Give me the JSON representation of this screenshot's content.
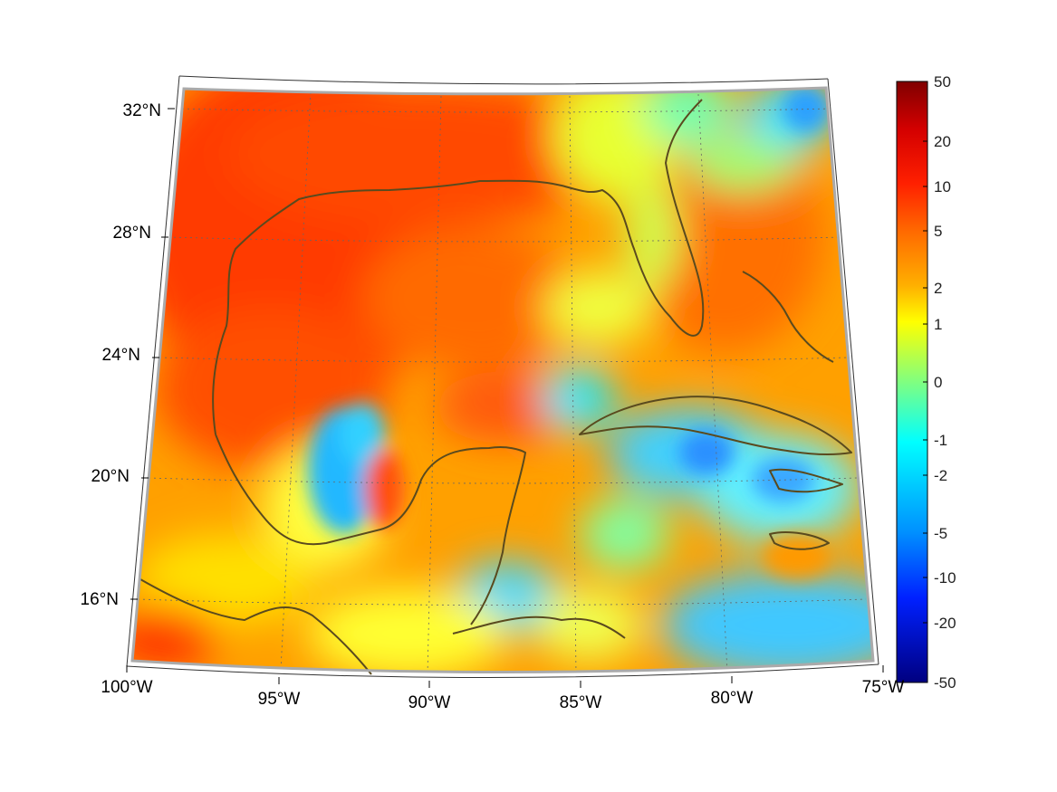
{
  "map": {
    "lat_labels": [
      "32°N",
      "28°N",
      "24°N",
      "20°N",
      "16°N"
    ],
    "lon_labels": [
      "100°W",
      "95°W",
      "90°W",
      "85°W",
      "80°W",
      "75°W"
    ],
    "extent": {
      "lon": [
        -100,
        -75
      ],
      "lat": [
        14,
        33
      ]
    },
    "graticule_lats": [
      32,
      28,
      24,
      20,
      16
    ],
    "graticule_lons": [
      -100,
      -95,
      -90,
      -85,
      -80,
      -75
    ],
    "coastline_color": "#5a4a1e"
  },
  "colorbar": {
    "labels": [
      "50",
      "20",
      "10",
      "5",
      "2",
      "1",
      "0",
      "-1",
      "-2",
      "-5",
      "-10",
      "-20",
      "-50"
    ],
    "colors": [
      "#800000",
      "#ff0000",
      "#ff8000",
      "#ffff00",
      "#80ff80",
      "#00ffff",
      "#0080ff",
      "#0000ff",
      "#000080"
    ]
  },
  "field_regions": [
    {
      "name": "western-gulf-warm",
      "level": 10
    },
    {
      "name": "florida-gulf-coast-cool",
      "level": 0
    },
    {
      "name": "bay-of-campeche-cool",
      "level": -2
    },
    {
      "name": "caribbean-cool",
      "level": -2
    },
    {
      "name": "atlantic-ne-cool",
      "level": -1
    },
    {
      "name": "yucatan-channel-mixed",
      "level": 1
    }
  ]
}
